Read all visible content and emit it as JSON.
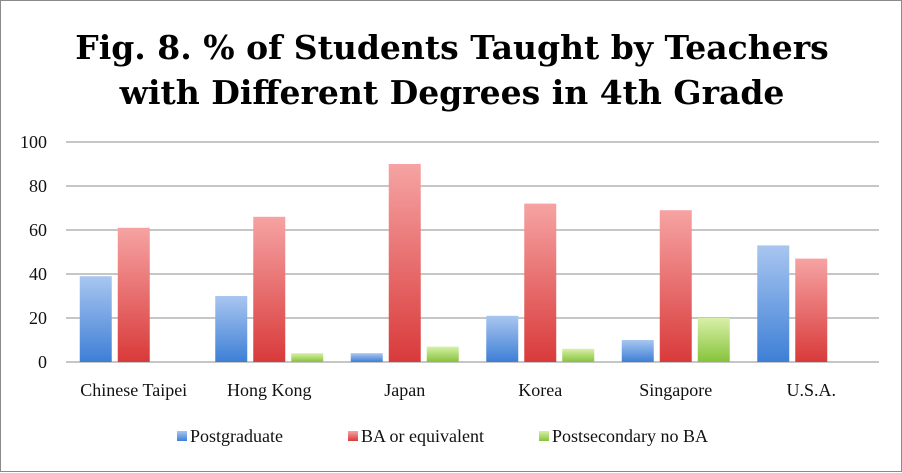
{
  "chart_data": {
    "type": "bar",
    "title": "Fig. 8. % of Students Taught by Teachers with Different Degrees in 4th Grade",
    "title_lines": [
      "Fig. 8. % of Students Taught by Teachers",
      "with Different Degrees in 4th Grade"
    ],
    "xlabel": "",
    "ylabel": "",
    "categories": [
      "Chinese Taipei",
      "Hong Kong",
      "Japan",
      "Korea",
      "Singapore",
      "U.S.A."
    ],
    "series": [
      {
        "name": "Postgraduate",
        "values": [
          39,
          30,
          4,
          21,
          10,
          53
        ],
        "color_top": "#a9c6f0",
        "color_bottom": "#3d7fd6"
      },
      {
        "name": "BA or equivalent",
        "values": [
          61,
          66,
          90,
          72,
          69,
          47
        ],
        "color_top": "#f6a3a3",
        "color_bottom": "#d93a3a"
      },
      {
        "name": "Postsecondary no BA",
        "values": [
          0,
          4,
          7,
          6,
          20,
          0
        ],
        "color_top": "#d8f0a8",
        "color_bottom": "#86c33a"
      }
    ],
    "ylim": [
      0,
      100
    ],
    "yticks": [
      0,
      20,
      40,
      60,
      80,
      100
    ],
    "grid": true,
    "legend_position": "bottom"
  }
}
